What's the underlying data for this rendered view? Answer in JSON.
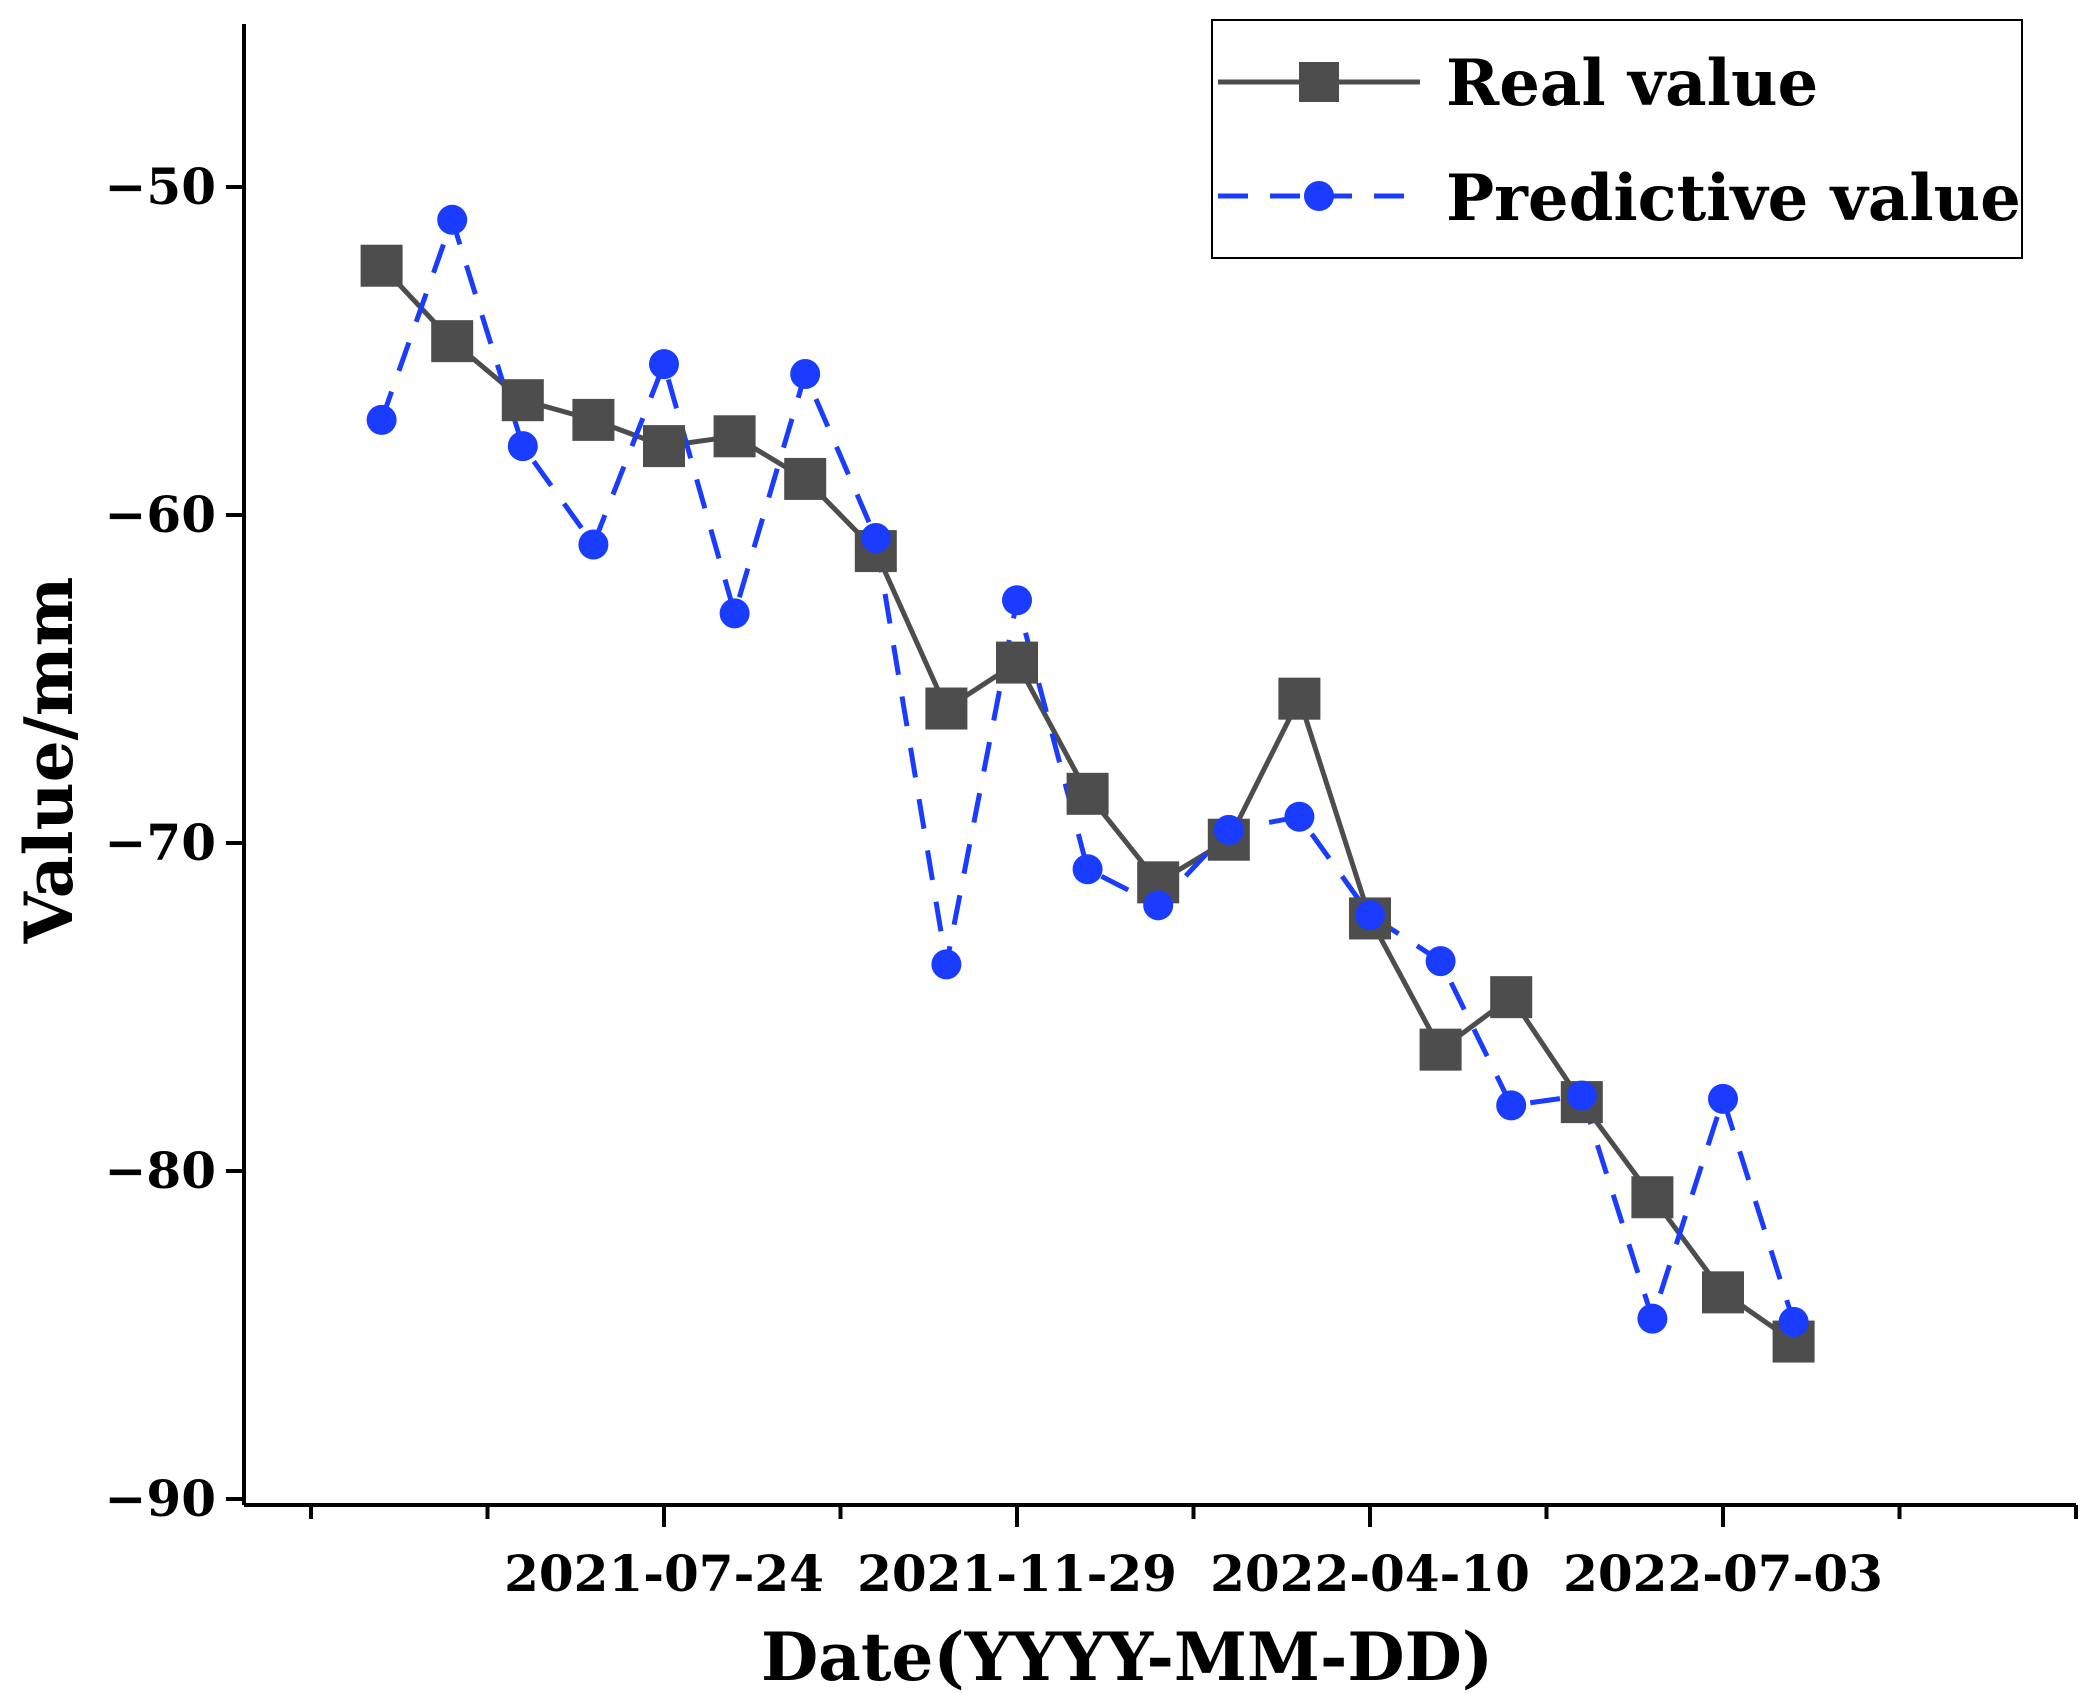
{
  "chart_data": {
    "type": "line",
    "title": "",
    "xlabel": "Date(YYYY-MM-DD)",
    "ylabel": "Value/mm",
    "ylim": [
      -90,
      -45
    ],
    "yticks": [
      -50,
      -60,
      -70,
      -80,
      -90
    ],
    "ytick_labels": [
      "−50",
      "−60",
      "−70",
      "−80",
      "−90"
    ],
    "xlim": [
      0,
      25
    ],
    "xticks_major": [
      5,
      10,
      15,
      20
    ],
    "xtick_labels": [
      "2021-07-24",
      "2021-11-29",
      "2022-04-10",
      "2022-07-03"
    ],
    "x": [
      1,
      2,
      3,
      4,
      5,
      6,
      7,
      8,
      9,
      10,
      11,
      12,
      13,
      14,
      15,
      16,
      17,
      18,
      19,
      20,
      21
    ],
    "series": [
      {
        "name": "Real value",
        "style": "solid",
        "marker": "square",
        "color": "#4d4d4d",
        "values": [
          -52.4,
          -54.7,
          -56.5,
          -57.1,
          -57.9,
          -57.6,
          -58.9,
          -61.1,
          -65.9,
          -64.5,
          -68.5,
          -71.2,
          -69.9,
          -65.6,
          -72.3,
          -76.3,
          -74.7,
          -77.9,
          -80.8,
          -83.7,
          -85.2
        ]
      },
      {
        "name": "Predictive value",
        "style": "dashed",
        "marker": "circle",
        "color": "#1a3cff",
        "values": [
          -57.1,
          -51.0,
          -57.9,
          -60.9,
          -55.4,
          -63.0,
          -55.7,
          -60.7,
          -73.7,
          -62.6,
          -70.8,
          -71.9,
          -69.6,
          -69.2,
          -72.2,
          -73.6,
          -78.0,
          -77.7,
          -84.5,
          -77.8,
          -84.6
        ]
      }
    ],
    "legend": {
      "position": "top-right"
    }
  }
}
